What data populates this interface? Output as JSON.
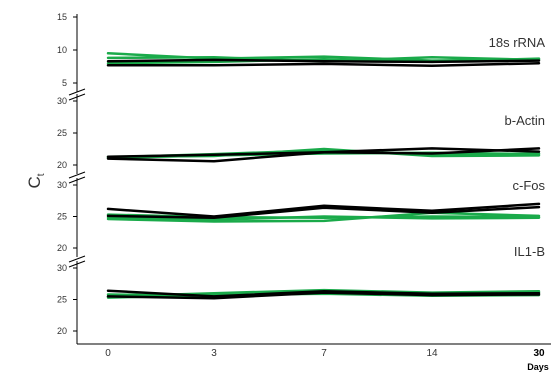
{
  "chart_data": {
    "type": "line",
    "ylabel": "C",
    "ylabel_sub": "t",
    "xlabel": "Days",
    "x_ticks": [
      "0",
      "3",
      "7",
      "14",
      "30"
    ],
    "colors": {
      "control": "#000000",
      "treated": "#1aaa4a"
    },
    "panels": [
      {
        "title": "18s rRNA",
        "ylim": [
          5,
          15
        ],
        "yticks": [
          "5",
          "10",
          "15"
        ],
        "series": [
          {
            "group": "control",
            "values": [
              8.3,
              8.5,
              8.3,
              8.2,
              8.4
            ]
          },
          {
            "group": "control",
            "values": [
              7.7,
              7.7,
              7.9,
              7.6,
              8.0
            ]
          },
          {
            "group": "treated",
            "values": [
              9.5,
              8.7,
              9.0,
              8.4,
              8.6
            ]
          },
          {
            "group": "treated",
            "values": [
              8.8,
              8.9,
              8.3,
              8.9,
              8.5
            ]
          },
          {
            "group": "treated",
            "values": [
              8.0,
              8.2,
              8.6,
              8.2,
              8.7
            ]
          }
        ]
      },
      {
        "title": "b-Actin",
        "ylim": [
          20,
          30
        ],
        "yticks": [
          "20",
          "25",
          "30"
        ],
        "series": [
          {
            "group": "control",
            "values": [
              21.0,
              20.6,
              22.0,
              22.6,
              22.1
            ]
          },
          {
            "group": "control",
            "values": [
              21.3,
              21.6,
              22.0,
              21.8,
              22.6
            ]
          },
          {
            "group": "treated",
            "values": [
              21.2,
              21.7,
              22.3,
              21.6,
              21.8
            ]
          },
          {
            "group": "treated",
            "values": [
              21.3,
              21.4,
              22.5,
              21.4,
              21.5
            ]
          },
          {
            "group": "treated",
            "values": [
              21.1,
              21.5,
              21.8,
              21.9,
              21.7
            ]
          }
        ]
      },
      {
        "title": "c-Fos",
        "ylim": [
          20,
          30
        ],
        "yticks": [
          "20",
          "25",
          "30"
        ],
        "series": [
          {
            "group": "control",
            "values": [
              26.2,
              25.0,
              26.7,
              25.9,
              27.0
            ]
          },
          {
            "group": "control",
            "values": [
              25.1,
              24.8,
              26.4,
              25.6,
              26.5
            ]
          },
          {
            "group": "treated",
            "values": [
              24.6,
              24.2,
              24.3,
              25.6,
              25.1
            ]
          },
          {
            "group": "treated",
            "values": [
              24.9,
              24.5,
              25.0,
              24.7,
              24.8
            ]
          },
          {
            "group": "treated",
            "values": [
              25.3,
              24.9,
              24.8,
              25.0,
              24.9
            ]
          }
        ]
      },
      {
        "title": "IL1-B",
        "ylim": [
          20,
          30
        ],
        "yticks": [
          "20",
          "25",
          "30"
        ],
        "series": [
          {
            "group": "control",
            "values": [
              26.4,
              25.5,
              26.3,
              25.9,
              26.0
            ]
          },
          {
            "group": "control",
            "values": [
              25.5,
              25.2,
              26.1,
              25.7,
              25.8
            ]
          },
          {
            "group": "treated",
            "values": [
              25.5,
              26.0,
              26.5,
              26.1,
              26.3
            ]
          },
          {
            "group": "treated",
            "values": [
              25.8,
              25.6,
              26.1,
              25.9,
              26.1
            ]
          },
          {
            "group": "treated",
            "values": [
              25.3,
              25.7,
              25.9,
              25.6,
              25.7
            ]
          }
        ]
      }
    ]
  }
}
